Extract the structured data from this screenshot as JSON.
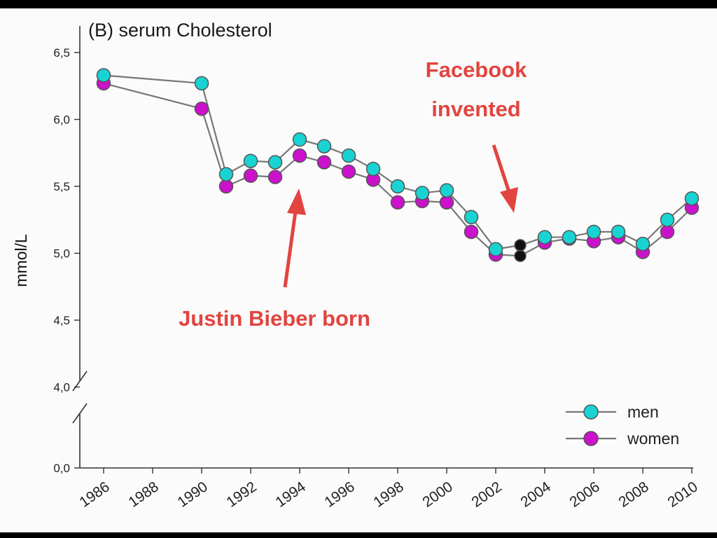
{
  "chart_data": {
    "type": "line",
    "title": "(B) serum Cholesterol",
    "ylabel": "mmol/L",
    "xlabel": "",
    "x": [
      1986,
      1990,
      1991,
      1992,
      1993,
      1994,
      1995,
      1996,
      1997,
      1998,
      1999,
      2000,
      2001,
      2002,
      2003,
      2004,
      2005,
      2006,
      2007,
      2008,
      2009,
      2010
    ],
    "series": [
      {
        "name": "men",
        "color": "#19d3d3",
        "values": [
          6.33,
          6.27,
          5.59,
          5.69,
          5.68,
          5.85,
          5.8,
          5.73,
          5.63,
          5.5,
          5.45,
          5.47,
          5.27,
          5.03,
          5.06,
          5.12,
          5.12,
          5.16,
          5.16,
          5.07,
          5.25,
          5.41
        ]
      },
      {
        "name": "women",
        "color": "#cc11cc",
        "values": [
          6.27,
          6.08,
          5.5,
          5.58,
          5.57,
          5.73,
          5.68,
          5.61,
          5.55,
          5.38,
          5.39,
          5.38,
          5.16,
          4.99,
          4.98,
          5.08,
          5.11,
          5.09,
          5.12,
          5.01,
          5.16,
          5.34
        ]
      }
    ],
    "highlight_x": 2003,
    "highlight_color": "#111111",
    "yticks": [
      "6,5",
      "6,0",
      "5,5",
      "5,0",
      "4,5",
      "4,0",
      "0,0"
    ],
    "ytick_values": [
      6.5,
      6.0,
      5.5,
      5.0,
      4.5,
      4.0,
      0.0
    ],
    "xticks": [
      "1986",
      "1988",
      "1990",
      "1992",
      "1994",
      "1996",
      "1998",
      "2000",
      "2002",
      "2004",
      "2006",
      "2008",
      "2010"
    ],
    "ylim": [
      4.0,
      6.5
    ],
    "axis_break": true,
    "grid": false,
    "legend_position": "bottom-right",
    "annotations": [
      {
        "lines": [
          "Facebook",
          "invented"
        ],
        "points_to_x": 2003
      },
      {
        "lines": [
          "Justin Bieber born"
        ],
        "points_to_x": 1994
      }
    ],
    "annotation_color": "#e2443f"
  }
}
